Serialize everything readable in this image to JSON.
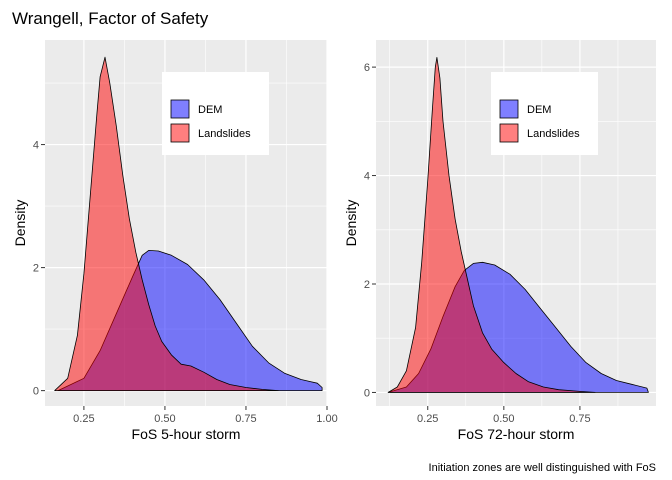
{
  "title": "Wrangell, Factor of Safety",
  "caption": "Initiation zones are well distinguished with FoS",
  "colors": {
    "panel_bg": "#ebebeb",
    "grid": "#ffffff",
    "dem_fill": "#0000ff",
    "landslides_fill": "#ff0000",
    "fill_alpha": 0.5,
    "outline": "#000000",
    "tick_text": "#4d4d4d"
  },
  "chart_data": [
    {
      "type": "area",
      "xlabel": "FoS 5-hour storm",
      "ylabel": "Density",
      "xlim": [
        0.13,
        1.0
      ],
      "ylim": [
        -0.25,
        5.7
      ],
      "x_ticks": [
        0.25,
        0.5,
        0.75,
        1.0
      ],
      "x_tick_labels": [
        "0.25",
        "0.50",
        "0.75",
        "1.00"
      ],
      "y_ticks": [
        0,
        2,
        4
      ],
      "y_tick_labels": [
        "0",
        "2",
        "4"
      ],
      "grid": true,
      "legend_position": "top-right",
      "series": [
        {
          "name": "DEM",
          "color_key": "dem_fill",
          "points": [
            [
              0.17,
              0
            ],
            [
              0.25,
              0.2
            ],
            [
              0.3,
              0.65
            ],
            [
              0.35,
              1.25
            ],
            [
              0.4,
              1.85
            ],
            [
              0.43,
              2.2
            ],
            [
              0.45,
              2.28
            ],
            [
              0.48,
              2.27
            ],
            [
              0.52,
              2.2
            ],
            [
              0.57,
              2.05
            ],
            [
              0.62,
              1.8
            ],
            [
              0.67,
              1.48
            ],
            [
              0.72,
              1.1
            ],
            [
              0.77,
              0.72
            ],
            [
              0.82,
              0.45
            ],
            [
              0.87,
              0.28
            ],
            [
              0.92,
              0.18
            ],
            [
              0.97,
              0.12
            ],
            [
              0.985,
              0.05
            ],
            [
              0.985,
              0
            ]
          ]
        },
        {
          "name": "Landslides",
          "color_key": "landslides_fill",
          "points": [
            [
              0.16,
              0
            ],
            [
              0.2,
              0.2
            ],
            [
              0.23,
              0.9
            ],
            [
              0.25,
              1.9
            ],
            [
              0.27,
              3.2
            ],
            [
              0.29,
              4.5
            ],
            [
              0.3,
              5.1
            ],
            [
              0.315,
              5.42
            ],
            [
              0.33,
              5.0
            ],
            [
              0.35,
              4.3
            ],
            [
              0.37,
              3.5
            ],
            [
              0.39,
              2.8
            ],
            [
              0.41,
              2.25
            ],
            [
              0.43,
              1.8
            ],
            [
              0.45,
              1.4
            ],
            [
              0.47,
              1.05
            ],
            [
              0.49,
              0.8
            ],
            [
              0.52,
              0.58
            ],
            [
              0.55,
              0.43
            ],
            [
              0.58,
              0.4
            ],
            [
              0.62,
              0.3
            ],
            [
              0.66,
              0.18
            ],
            [
              0.7,
              0.1
            ],
            [
              0.75,
              0.05
            ],
            [
              0.8,
              0.02
            ],
            [
              0.85,
              0
            ]
          ]
        }
      ]
    },
    {
      "type": "area",
      "xlabel": "FoS 72-hour storm",
      "ylabel": "Density",
      "xlim": [
        0.08,
        1.0
      ],
      "ylim": [
        -0.25,
        6.5
      ],
      "x_ticks": [
        0.25,
        0.5,
        0.75
      ],
      "x_tick_labels": [
        "0.25",
        "0.50",
        "0.75"
      ],
      "y_ticks": [
        0,
        2,
        4,
        6
      ],
      "y_tick_labels": [
        "0",
        "2",
        "4",
        "6"
      ],
      "grid": true,
      "legend_position": "top-right",
      "series": [
        {
          "name": "DEM",
          "color_key": "dem_fill",
          "points": [
            [
              0.12,
              0
            ],
            [
              0.18,
              0.1
            ],
            [
              0.22,
              0.35
            ],
            [
              0.26,
              0.8
            ],
            [
              0.3,
              1.4
            ],
            [
              0.34,
              1.95
            ],
            [
              0.37,
              2.25
            ],
            [
              0.4,
              2.38
            ],
            [
              0.43,
              2.4
            ],
            [
              0.47,
              2.35
            ],
            [
              0.52,
              2.18
            ],
            [
              0.57,
              1.9
            ],
            [
              0.62,
              1.55
            ],
            [
              0.67,
              1.2
            ],
            [
              0.72,
              0.85
            ],
            [
              0.77,
              0.55
            ],
            [
              0.82,
              0.35
            ],
            [
              0.87,
              0.22
            ],
            [
              0.92,
              0.15
            ],
            [
              0.97,
              0.08
            ],
            [
              0.975,
              0
            ]
          ]
        },
        {
          "name": "Landslides",
          "color_key": "landslides_fill",
          "points": [
            [
              0.12,
              0
            ],
            [
              0.15,
              0.1
            ],
            [
              0.18,
              0.4
            ],
            [
              0.21,
              1.2
            ],
            [
              0.23,
              2.4
            ],
            [
              0.25,
              3.9
            ],
            [
              0.265,
              5.2
            ],
            [
              0.275,
              6.0
            ],
            [
              0.28,
              6.18
            ],
            [
              0.29,
              5.8
            ],
            [
              0.3,
              5.0
            ],
            [
              0.32,
              4.0
            ],
            [
              0.34,
              3.2
            ],
            [
              0.36,
              2.6
            ],
            [
              0.38,
              2.1
            ],
            [
              0.4,
              1.6
            ],
            [
              0.43,
              1.1
            ],
            [
              0.46,
              0.8
            ],
            [
              0.5,
              0.55
            ],
            [
              0.54,
              0.35
            ],
            [
              0.58,
              0.2
            ],
            [
              0.63,
              0.1
            ],
            [
              0.68,
              0.05
            ],
            [
              0.75,
              0.02
            ],
            [
              0.8,
              0
            ]
          ]
        }
      ]
    }
  ]
}
